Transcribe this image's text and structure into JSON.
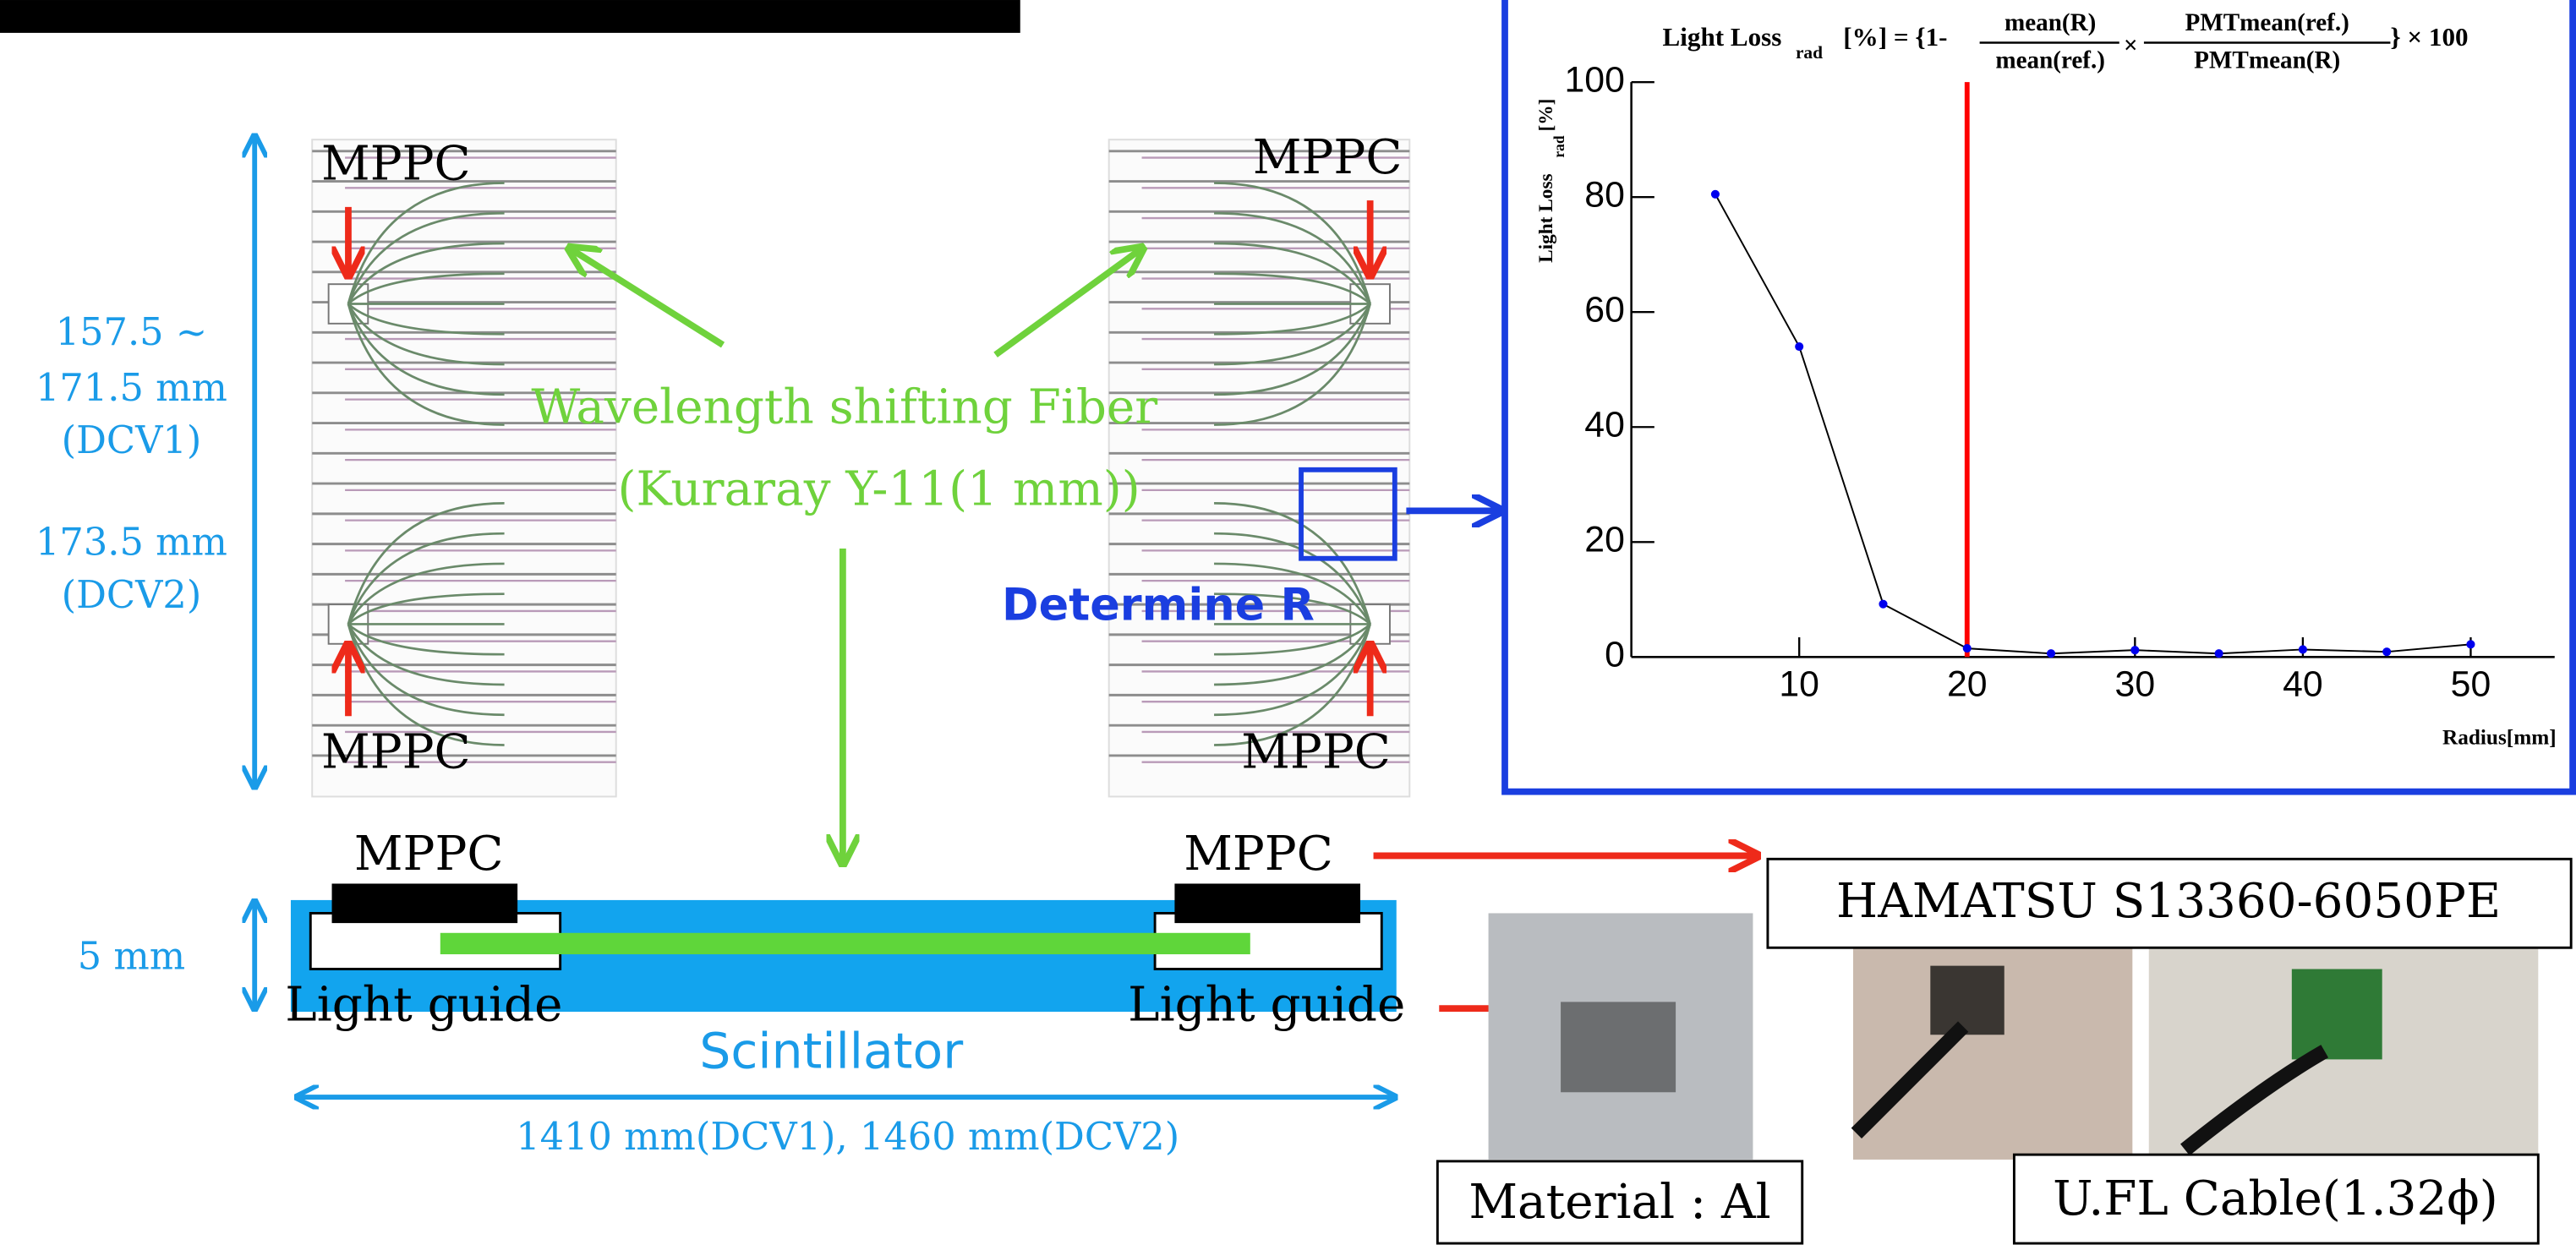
{
  "slide": {
    "fiber_label": "Wavelength shifting Fiber",
    "fiber_type": "(Kuraray Y-11(1 mm))",
    "mppc_labels": [
      "MPPC",
      "MPPC",
      "MPPC",
      "MPPC",
      "MPPC",
      "MPPC"
    ],
    "determine": "Determine R",
    "width_dim": [
      "157.5 ~",
      "171.5 mm",
      "(DCV1)",
      "173.5 mm",
      "(DCV2)"
    ],
    "thickness": "5 mm",
    "light_guide": [
      "Light guide",
      "Light guide"
    ],
    "scintillator": "Scintillator",
    "length": "1410 mm(DCV1), 1460 mm(DCV2)",
    "sensor": "HAMATSU S13360-6050PE",
    "material": "Material : Al",
    "cable": "U.FL Cable(1.32ϕ)"
  },
  "chart_data": {
    "type": "line",
    "title": {
      "main": "Light Loss",
      "sub": "rad",
      "eq": "[%] = {1-",
      "num1": "mean(R)",
      "den1": "mean(ref.)",
      "times": "×",
      "num2": "PMTmean(ref.)",
      "den2": "PMTmean(R)",
      "tail": "}  × 100"
    },
    "y_label": {
      "main": "Light Loss",
      "sub": "rad",
      "unit": "[%]"
    },
    "x_label": "Radius[mm]",
    "x": [
      5,
      10,
      15,
      20,
      25,
      30,
      35,
      40,
      45,
      50
    ],
    "values": [
      80.5,
      54,
      9.2,
      1.5,
      0.6,
      1.2,
      0.6,
      1.3,
      0.9,
      2.2
    ],
    "color": "#0000ee",
    "line_color": "#000000",
    "xlim": [
      0,
      55
    ],
    "ylim": [
      0,
      100
    ],
    "xticks": [
      10,
      20,
      30,
      40,
      50
    ],
    "yticks": [
      0,
      20,
      40,
      60,
      80,
      100
    ],
    "threshold_x": 20,
    "threshold_color": "#ff0000"
  }
}
